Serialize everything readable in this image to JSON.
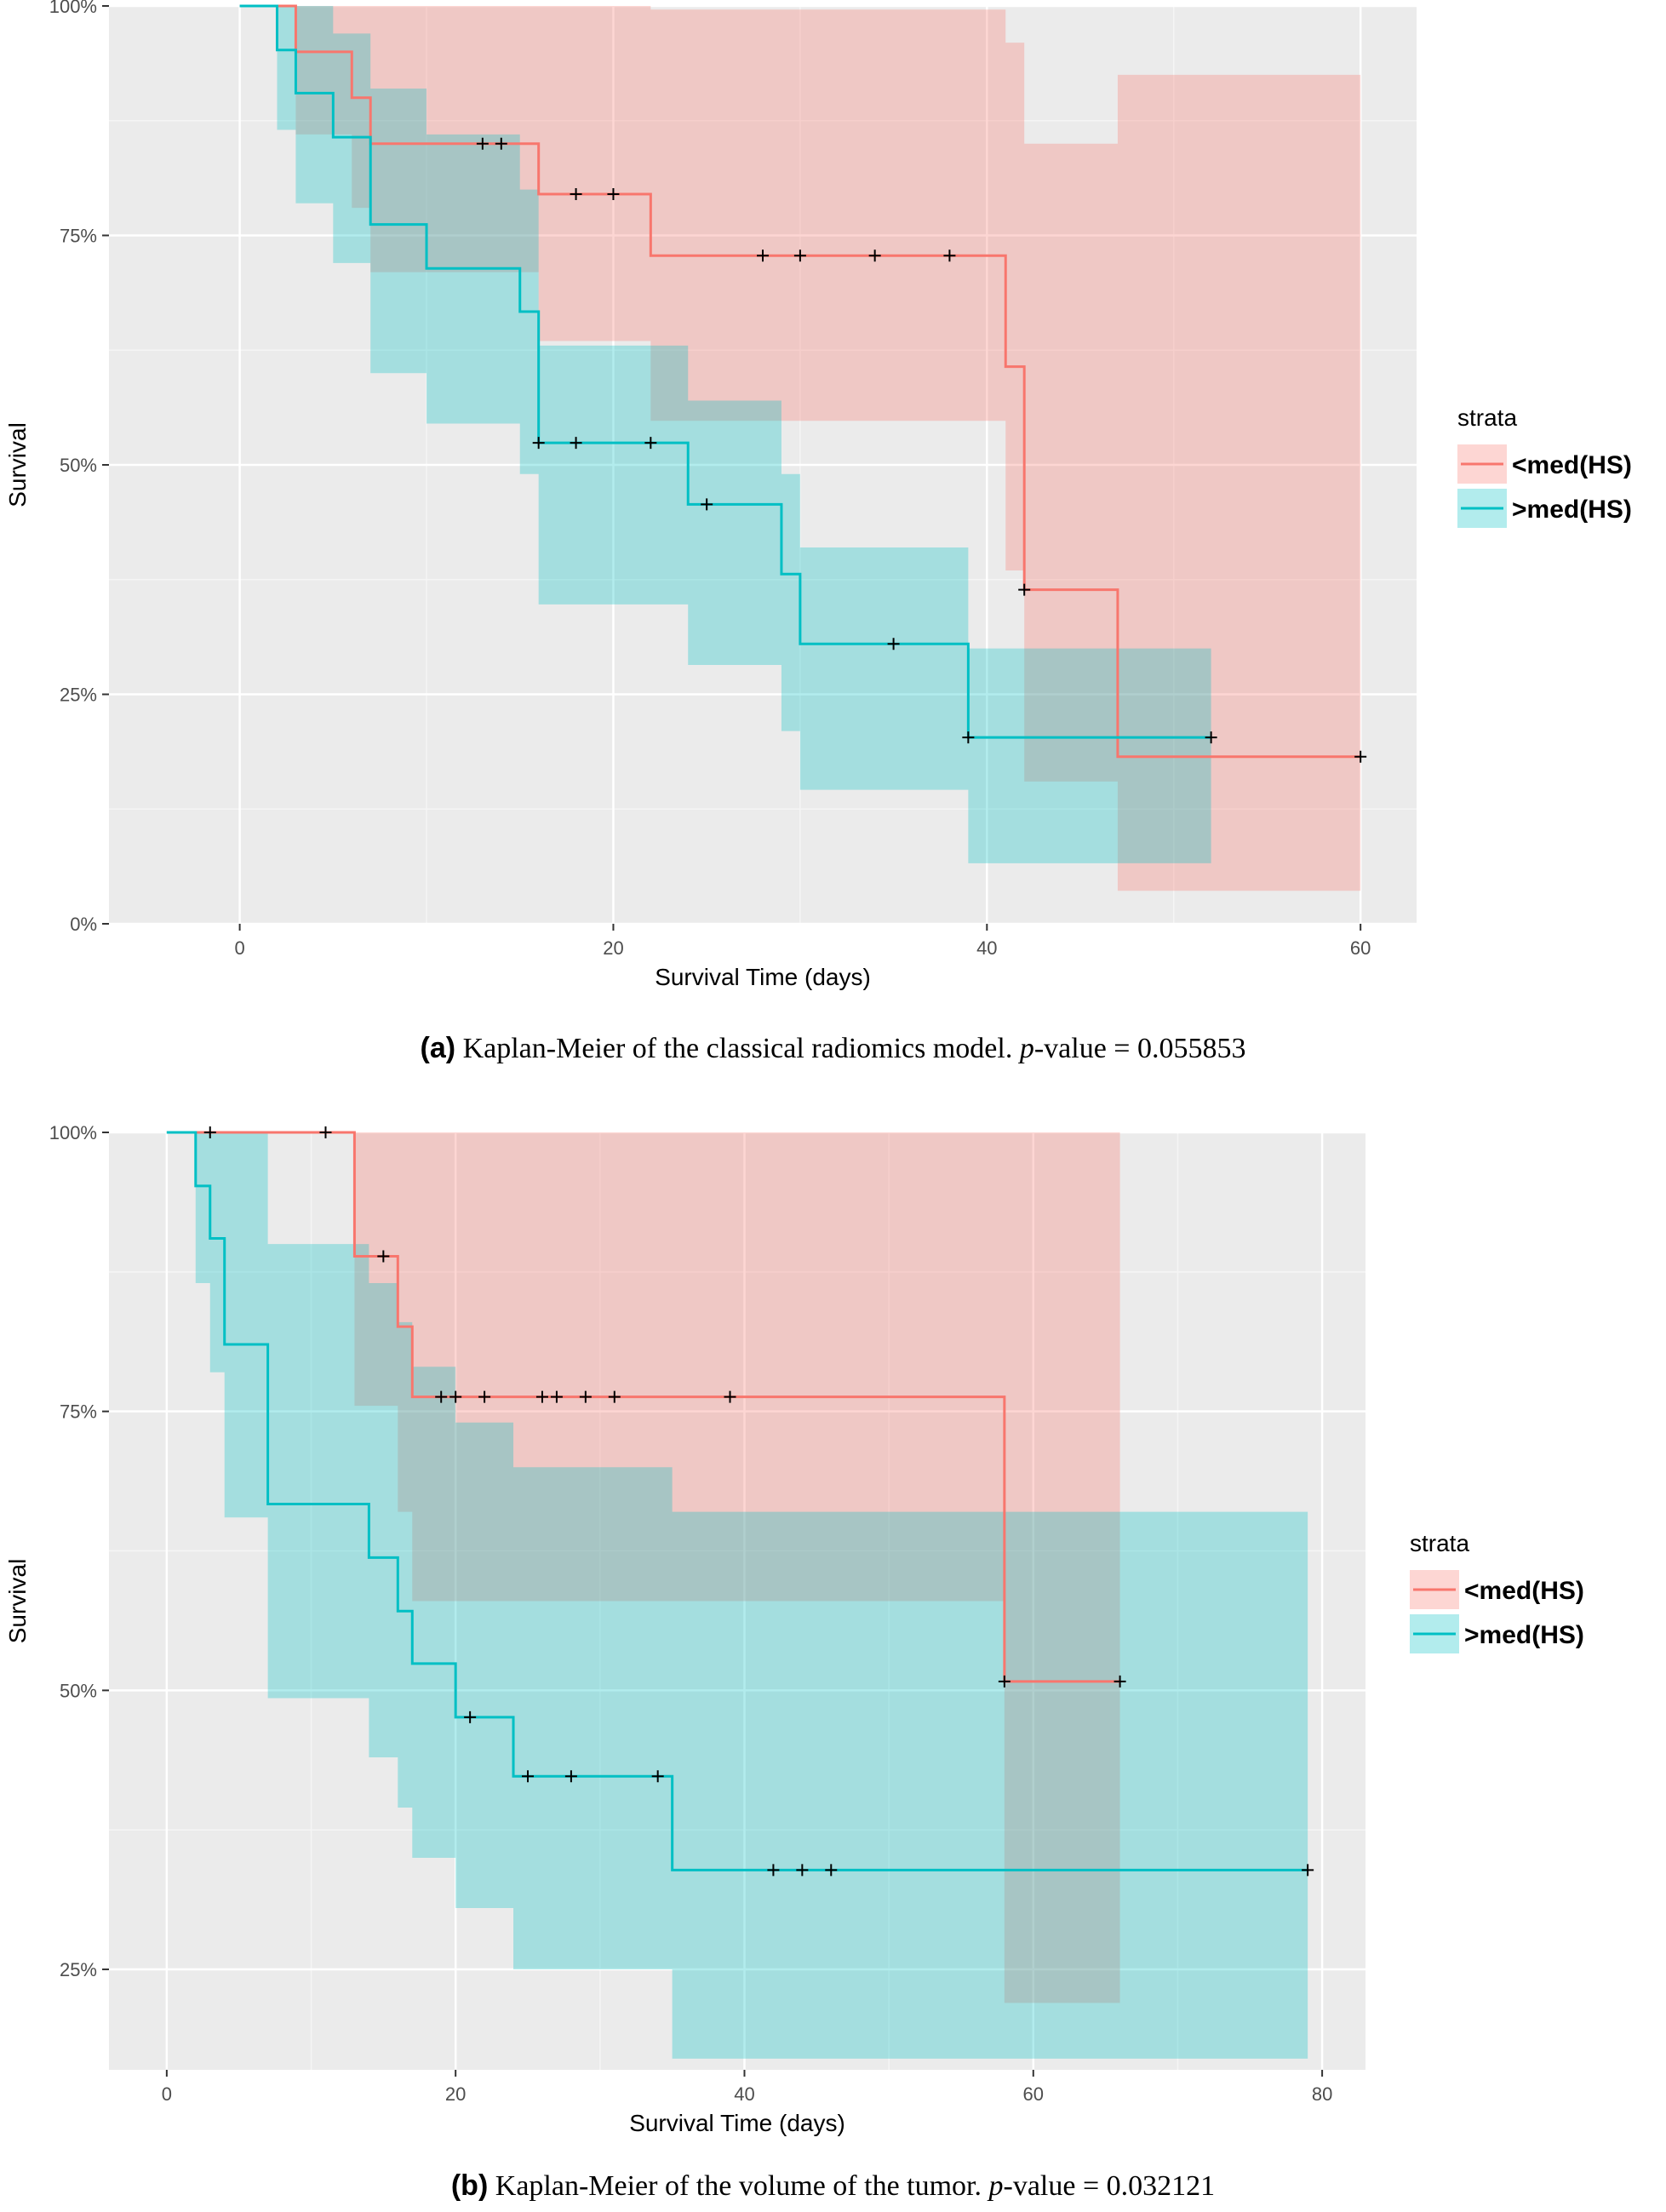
{
  "colors": {
    "panel": "#ebebeb",
    "grid_major": "#ffffff",
    "grid_minor": "#f5f5f5",
    "red_line": "#f8766d",
    "red_fill": "#f8766d",
    "cyan_line": "#00bfc4",
    "cyan_fill": "#00bfc4"
  },
  "captions": [
    {
      "label": "(a)",
      "text": "Kaplan-Meier of the classical radiomics model.",
      "p_label": "p",
      "p_rest": "-value = 0.055853"
    },
    {
      "label": "(b)",
      "text": "Kaplan-Meier of the volume of the tumor.",
      "p_label": "p",
      "p_rest": "-value = 0.032121"
    }
  ],
  "chart_data": [
    {
      "type": "line",
      "subtype": "kaplan-meier",
      "xlabel": "Survival Time (days)",
      "ylabel": "Survival",
      "xlim": [
        -7,
        63
      ],
      "ylim": [
        0,
        1
      ],
      "xticks": [
        0,
        20,
        40,
        60
      ],
      "yticks": [
        0,
        0.25,
        0.5,
        0.75,
        1.0
      ],
      "ytick_labels": [
        "0%",
        "25%",
        "50%",
        "75%",
        "100%"
      ],
      "grid": true,
      "legend": {
        "title": "strata",
        "position": "right",
        "labels": [
          "<med(HS)",
          ">med(HS)"
        ]
      },
      "series": [
        {
          "name": "<med(HS)",
          "color": "red",
          "steps": [
            [
              0,
              1.0
            ],
            [
              3,
              0.95
            ],
            [
              6,
              0.9
            ],
            [
              7,
              0.85
            ],
            [
              16,
              0.795
            ],
            [
              22,
              0.728
            ],
            [
              41,
              0.607
            ],
            [
              42,
              0.364
            ],
            [
              47,
              0.182
            ],
            [
              60,
              0.182
            ]
          ],
          "ci": [
            [
              0,
              1.0,
              1.0
            ],
            [
              3,
              1.0,
              0.86
            ],
            [
              6,
              1.0,
              0.78
            ],
            [
              7,
              1.0,
              0.71
            ],
            [
              16,
              1.0,
              0.635
            ],
            [
              22,
              0.996,
              0.548
            ],
            [
              41,
              0.96,
              0.385
            ],
            [
              42,
              0.85,
              0.155
            ],
            [
              47,
              0.925,
              0.036
            ],
            [
              60,
              0.925,
              0.036
            ]
          ],
          "censors": [
            [
              13,
              0.85
            ],
            [
              14,
              0.85
            ],
            [
              18,
              0.795
            ],
            [
              20,
              0.795
            ],
            [
              28,
              0.728
            ],
            [
              30,
              0.728
            ],
            [
              34,
              0.728
            ],
            [
              38,
              0.728
            ],
            [
              42,
              0.364
            ],
            [
              60,
              0.182
            ]
          ]
        },
        {
          "name": ">med(HS)",
          "color": "cyan",
          "steps": [
            [
              0,
              1.0
            ],
            [
              2,
              0.952
            ],
            [
              3,
              0.905
            ],
            [
              5,
              0.857
            ],
            [
              7,
              0.762
            ],
            [
              10,
              0.714
            ],
            [
              15,
              0.667
            ],
            [
              16,
              0.524
            ],
            [
              24,
              0.457
            ],
            [
              29,
              0.381
            ],
            [
              30,
              0.305
            ],
            [
              39,
              0.203
            ],
            [
              52,
              0.203
            ]
          ],
          "ci": [
            [
              0,
              1.0,
              1.0
            ],
            [
              2,
              1.0,
              0.865
            ],
            [
              3,
              1.0,
              0.785
            ],
            [
              5,
              0.97,
              0.72
            ],
            [
              7,
              0.91,
              0.6
            ],
            [
              10,
              0.86,
              0.545
            ],
            [
              15,
              0.8,
              0.49
            ],
            [
              16,
              0.63,
              0.348
            ],
            [
              24,
              0.57,
              0.282
            ],
            [
              29,
              0.49,
              0.21
            ],
            [
              30,
              0.41,
              0.146
            ],
            [
              39,
              0.3,
              0.066
            ],
            [
              52,
              0.3,
              0.066
            ]
          ],
          "censors": [
            [
              16,
              0.524
            ],
            [
              18,
              0.524
            ],
            [
              22,
              0.524
            ],
            [
              25,
              0.457
            ],
            [
              35,
              0.305
            ],
            [
              39,
              0.203
            ],
            [
              52,
              0.203
            ]
          ]
        }
      ]
    },
    {
      "type": "line",
      "subtype": "kaplan-meier",
      "xlabel": "Survival Time (days)",
      "ylabel": "Survival",
      "xlim": [
        -4,
        83
      ],
      "ylim": [
        0.16,
        1.0
      ],
      "xticks": [
        0,
        20,
        40,
        60,
        80
      ],
      "yticks": [
        0.25,
        0.5,
        0.75,
        1.0
      ],
      "ytick_labels": [
        "25%",
        "50%",
        "75%",
        "100%"
      ],
      "grid": true,
      "legend": {
        "title": "strata",
        "position": "right",
        "labels": [
          "<med(HS)",
          ">med(HS)"
        ]
      },
      "series": [
        {
          "name": "<med(HS)",
          "color": "red",
          "steps": [
            [
              0,
              1.0
            ],
            [
              13,
              0.889
            ],
            [
              16,
              0.826
            ],
            [
              17,
              0.763
            ],
            [
              58,
              0.508
            ],
            [
              66,
              0.508
            ]
          ],
          "ci": [
            [
              0,
              1.0,
              1.0
            ],
            [
              13,
              1.0,
              0.755
            ],
            [
              16,
              1.0,
              0.66
            ],
            [
              17,
              1.0,
              0.58
            ],
            [
              24,
              1.0,
              0.58
            ],
            [
              58,
              1.0,
              0.22
            ],
            [
              66,
              1.0,
              0.22
            ]
          ],
          "censors": [
            [
              3,
              1.0
            ],
            [
              11,
              1.0
            ],
            [
              15,
              0.889
            ],
            [
              19,
              0.763
            ],
            [
              20,
              0.763
            ],
            [
              22,
              0.763
            ],
            [
              26,
              0.763
            ],
            [
              27,
              0.763
            ],
            [
              29,
              0.763
            ],
            [
              31,
              0.763
            ],
            [
              39,
              0.763
            ],
            [
              58,
              0.508
            ],
            [
              66,
              0.508
            ]
          ]
        },
        {
          "name": ">med(HS)",
          "color": "cyan",
          "steps": [
            [
              0,
              1.0
            ],
            [
              2,
              0.952
            ],
            [
              3,
              0.905
            ],
            [
              4,
              0.81
            ],
            [
              7,
              0.667
            ],
            [
              14,
              0.619
            ],
            [
              16,
              0.571
            ],
            [
              17,
              0.524
            ],
            [
              20,
              0.476
            ],
            [
              24,
              0.423
            ],
            [
              35,
              0.339
            ],
            [
              79,
              0.339
            ]
          ],
          "ci": [
            [
              0,
              1.0,
              1.0
            ],
            [
              2,
              1.0,
              0.865
            ],
            [
              3,
              1.0,
              0.785
            ],
            [
              4,
              1.0,
              0.655
            ],
            [
              7,
              0.9,
              0.493
            ],
            [
              14,
              0.865,
              0.44
            ],
            [
              16,
              0.83,
              0.395
            ],
            [
              17,
              0.79,
              0.35
            ],
            [
              20,
              0.74,
              0.305
            ],
            [
              24,
              0.7,
              0.25
            ],
            [
              35,
              0.66,
              0.17
            ],
            [
              79,
              0.66,
              0.17
            ]
          ],
          "censors": [
            [
              21,
              0.476
            ],
            [
              25,
              0.423
            ],
            [
              28,
              0.423
            ],
            [
              34,
              0.423
            ],
            [
              42,
              0.339
            ],
            [
              44,
              0.339
            ],
            [
              46,
              0.339
            ],
            [
              79,
              0.339
            ]
          ]
        }
      ]
    }
  ]
}
